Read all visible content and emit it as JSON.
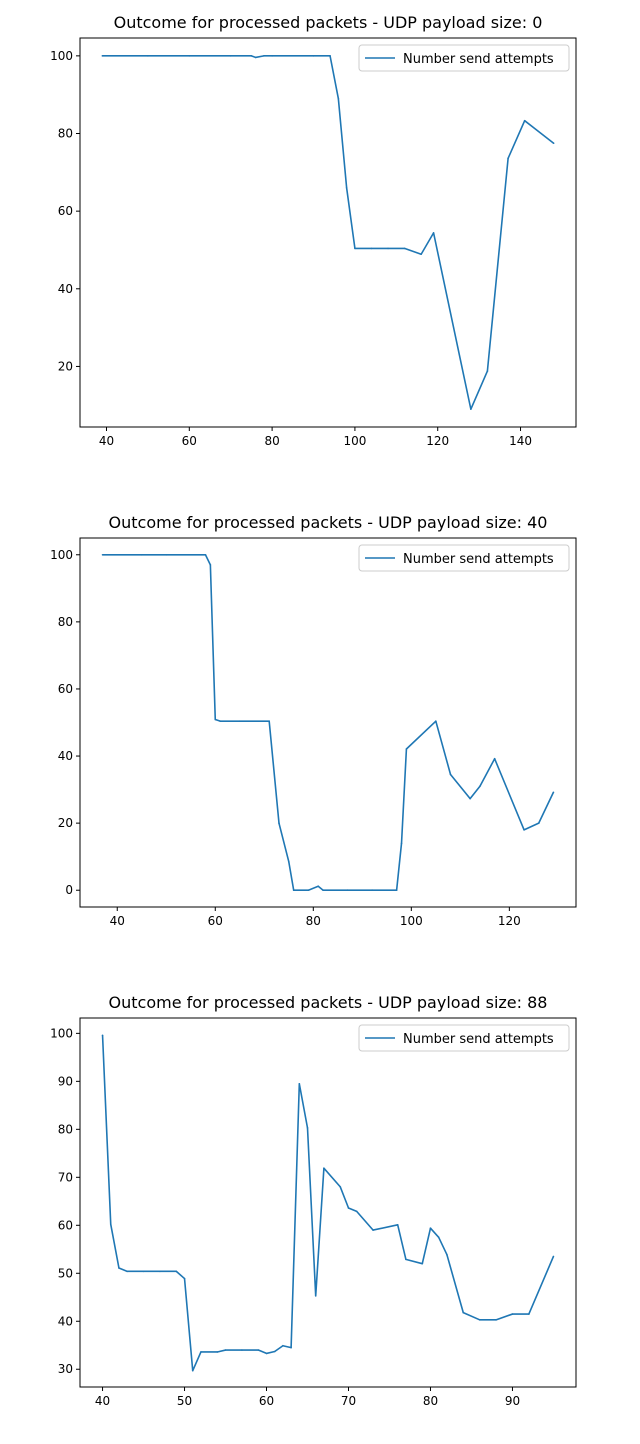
{
  "chart_data": [
    {
      "type": "line",
      "title": "Outcome for processed packets - UDP payload size: 0",
      "xlabel": "",
      "ylabel": "",
      "xlim": [
        33.6,
        153.4
      ],
      "ylim": [
        4.4,
        104.6
      ],
      "xticks": [
        40,
        60,
        80,
        100,
        120,
        140
      ],
      "yticks": [
        20,
        40,
        60,
        80,
        100
      ],
      "legend": "top-right",
      "grid": false,
      "series": [
        {
          "name": "Number send attempts",
          "color": "#1f77b4",
          "x": [
            39,
            50,
            60,
            70,
            75,
            76,
            78,
            80,
            90,
            94,
            96,
            98,
            100,
            104,
            108,
            112,
            116,
            119,
            128,
            132,
            137,
            141,
            148
          ],
          "y": [
            100,
            100,
            100,
            100,
            100,
            99.6,
            100,
            100,
            100,
            100,
            89,
            66,
            50.4,
            50.4,
            50.4,
            50.4,
            48.9,
            54.4,
            9,
            18.8,
            73.6,
            83.3,
            77.5
          ]
        }
      ]
    },
    {
      "type": "line",
      "title": "Outcome for processed packets - UDP payload size: 40",
      "xlabel": "",
      "ylabel": "",
      "xlim": [
        32.4,
        133.6
      ],
      "ylim": [
        -5,
        105
      ],
      "xticks": [
        40,
        60,
        80,
        100,
        120
      ],
      "yticks": [
        0,
        20,
        40,
        60,
        80,
        100
      ],
      "legend": "top-right",
      "grid": false,
      "series": [
        {
          "name": "Number send attempts",
          "color": "#1f77b4",
          "x": [
            37,
            45,
            50,
            58,
            59,
            60,
            61,
            65,
            71,
            73,
            75,
            76,
            79,
            81,
            82,
            87,
            92,
            97,
            98,
            99,
            105,
            108,
            112,
            114,
            117,
            123,
            126,
            129
          ],
          "y": [
            100,
            100,
            100,
            100,
            97,
            50.9,
            50.4,
            50.4,
            50.4,
            20,
            8.5,
            0,
            0,
            1.2,
            0,
            0,
            0,
            0,
            14,
            42.1,
            50.4,
            34.5,
            27.3,
            31,
            39.2,
            18,
            20,
            29.2
          ]
        }
      ]
    },
    {
      "type": "line",
      "title": "Outcome for processed packets - UDP payload size: 88",
      "xlabel": "",
      "ylabel": "",
      "xlim": [
        37.25,
        97.75
      ],
      "ylim": [
        26.3,
        103.2
      ],
      "xticks": [
        40,
        50,
        60,
        70,
        80,
        90
      ],
      "yticks": [
        30,
        40,
        50,
        60,
        70,
        80,
        90,
        100
      ],
      "legend": "top-right",
      "grid": false,
      "series": [
        {
          "name": "Number send attempts",
          "color": "#1f77b4",
          "x": [
            40,
            41,
            42,
            43,
            45,
            47,
            49,
            50,
            51,
            52,
            54,
            55,
            57,
            59,
            60,
            61,
            62,
            63,
            64,
            65,
            66,
            67,
            69,
            70,
            71,
            73,
            76,
            77,
            79,
            80,
            81,
            82,
            84,
            86,
            88,
            90,
            92,
            95
          ],
          "y": [
            99.6,
            60.2,
            51.1,
            50.4,
            50.4,
            50.4,
            50.4,
            48.9,
            29.7,
            33.6,
            33.6,
            34,
            34,
            34,
            33.3,
            33.7,
            34.9,
            34.5,
            89.5,
            80.3,
            45.3,
            71.9,
            68,
            63.6,
            62.9,
            59,
            60.1,
            52.9,
            52,
            59.4,
            57.5,
            53.9,
            41.8,
            40.3,
            40.3,
            41.5,
            41.5,
            53.5
          ]
        }
      ]
    }
  ]
}
